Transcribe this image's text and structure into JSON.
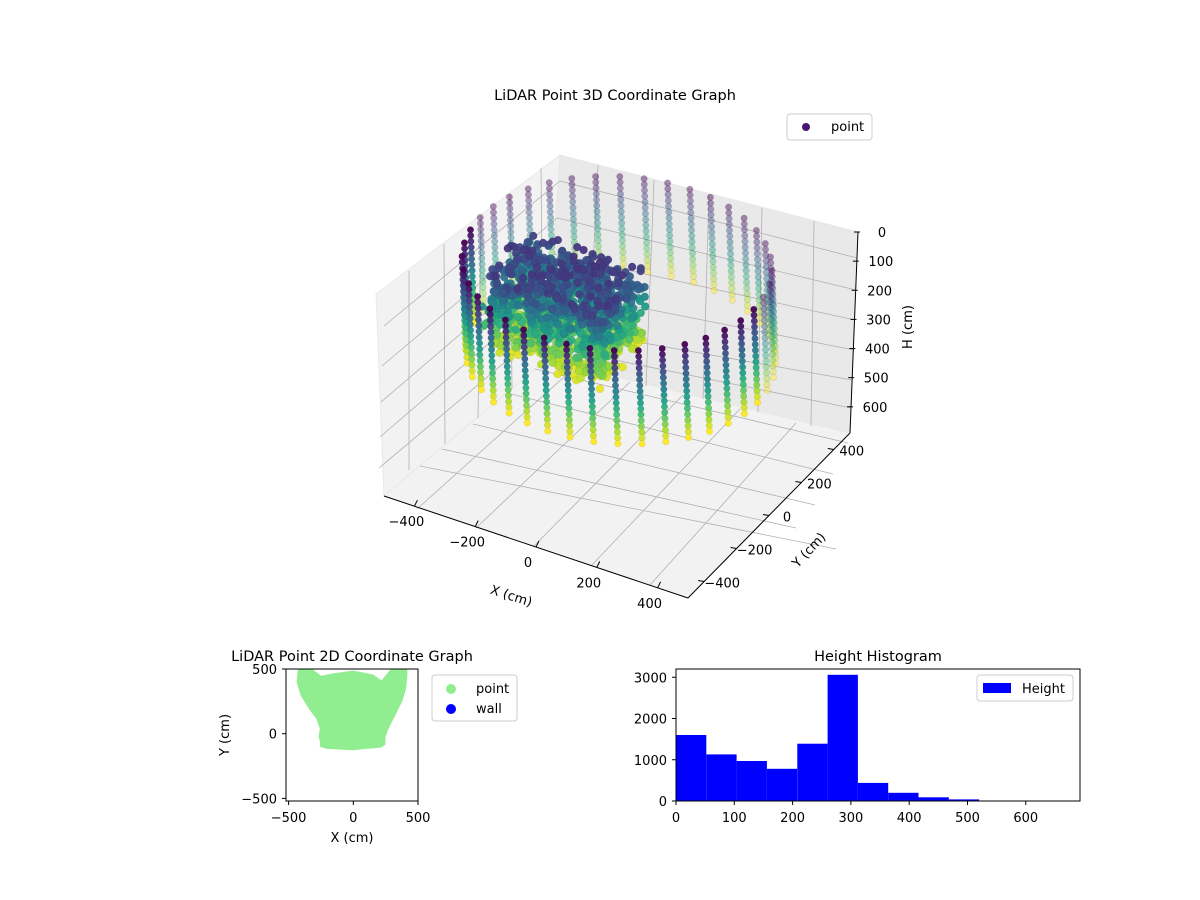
{
  "chart_data": [
    {
      "type": "scatter",
      "title": "LiDAR Point 3D Coordinate Graph",
      "xlabel": "X (cm)",
      "ylabel": "Y (cm)",
      "zlabel": "H (cm)",
      "x_ticks": [
        -400,
        -200,
        0,
        200,
        400
      ],
      "y_ticks": [
        -400,
        -200,
        0,
        200,
        400
      ],
      "z_ticks": [
        0,
        100,
        200,
        300,
        400,
        500,
        600
      ],
      "xlim": [
        -500,
        500
      ],
      "ylim": [
        -500,
        500
      ],
      "zlim": [
        690,
        0
      ],
      "z_inverted": true,
      "legend": [
        "point"
      ],
      "legend_position": "upper-right",
      "colormap": "viridis",
      "grid": true,
      "point_cloud": {
        "ring_radius_cm": 450,
        "ring_height_range_cm": [
          0,
          320
        ],
        "cluster_x_range_cm": [
          -350,
          50
        ],
        "cluster_y_range_cm": [
          -200,
          100
        ],
        "cluster_height_range_cm": [
          50,
          310
        ]
      }
    },
    {
      "type": "scatter",
      "title": "LiDAR Point 2D Coordinate Graph",
      "xlabel": "X (cm)",
      "ylabel": "Y (cm)",
      "xlim": [
        -520,
        500
      ],
      "ylim": [
        -520,
        500
      ],
      "x_ticks": [
        -500,
        0,
        500
      ],
      "y_ticks": [
        -500,
        0,
        500
      ],
      "legend": [
        "point",
        "wall"
      ],
      "legend_position": "outside-right",
      "series": [
        {
          "name": "point",
          "color": "#90ee90",
          "outline": [
            [
              -420,
              500
            ],
            [
              -430,
              400
            ],
            [
              -400,
              300
            ],
            [
              -340,
              200
            ],
            [
              -280,
              120
            ],
            [
              -250,
              40
            ],
            [
              -260,
              -20
            ],
            [
              -250,
              -60
            ],
            [
              -250,
              -95
            ],
            [
              -200,
              -110
            ],
            [
              -100,
              -115
            ],
            [
              0,
              -120
            ],
            [
              100,
              -110
            ],
            [
              210,
              -100
            ],
            [
              240,
              -80
            ],
            [
              240,
              -30
            ],
            [
              260,
              30
            ],
            [
              320,
              150
            ],
            [
              370,
              250
            ],
            [
              400,
              350
            ],
            [
              410,
              450
            ],
            [
              410,
              500
            ],
            [
              300,
              500
            ],
            [
              250,
              440
            ],
            [
              220,
              400
            ],
            [
              150,
              450
            ],
            [
              0,
              480
            ],
            [
              -150,
              460
            ],
            [
              -250,
              440
            ],
            [
              -330,
              500
            ]
          ]
        },
        {
          "name": "wall",
          "color": "#0000ff",
          "points": []
        }
      ]
    },
    {
      "type": "bar",
      "title": "Height Histogram",
      "legend": [
        "Height"
      ],
      "legend_position": "upper-right",
      "series_name": "Height",
      "color": "#0000ff",
      "bin_edges": [
        0,
        52,
        104,
        156,
        208,
        260,
        312,
        364,
        416,
        468,
        520,
        572,
        624,
        676
      ],
      "values": [
        1600,
        1130,
        970,
        780,
        1390,
        3060,
        440,
        200,
        90,
        40,
        8,
        3,
        2
      ],
      "x_ticks": [
        0,
        100,
        200,
        300,
        400,
        500,
        600
      ],
      "y_ticks": [
        0,
        1000,
        2000,
        3000
      ],
      "xlim": [
        0,
        693
      ],
      "ylim": [
        0,
        3200
      ]
    }
  ]
}
